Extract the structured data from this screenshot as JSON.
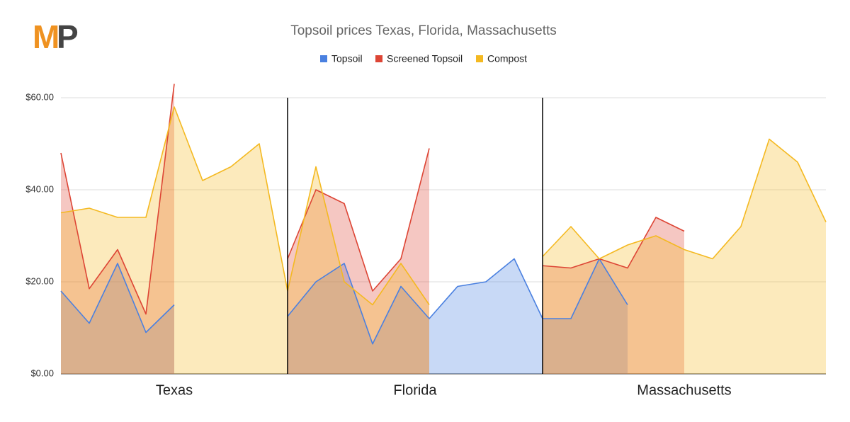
{
  "logo": {
    "first": "M",
    "second": "P"
  },
  "chart_data": {
    "type": "area",
    "title": "Topsoil prices Texas, Florida, Massachusetts",
    "categories": [
      "Texas",
      "Texas",
      "Texas",
      "Texas",
      "Texas",
      "Texas",
      "Texas",
      "Texas",
      "Florida",
      "Florida",
      "Florida",
      "Florida",
      "Florida",
      "Florida",
      "Florida",
      "Florida",
      "Florida",
      "Massachusetts",
      "Massachusetts",
      "Massachusetts",
      "Massachusetts",
      "Massachusetts",
      "Massachusetts",
      "Massachusetts",
      "Massachusetts",
      "Massachusetts",
      "Massachusetts",
      "Massachusetts"
    ],
    "series": [
      {
        "name": "Topsoil",
        "color": "#4a80e0",
        "values": [
          18,
          11,
          24,
          9,
          15,
          null,
          null,
          null,
          12.5,
          20,
          24,
          6.5,
          19,
          12,
          19,
          20,
          25,
          12,
          12,
          25,
          15,
          null,
          null,
          null,
          null,
          null,
          null,
          null
        ]
      },
      {
        "name": "Screened Topsoil",
        "color": "#dd4535",
        "values": [
          48,
          18.5,
          27,
          13,
          63,
          null,
          null,
          null,
          25,
          40,
          37,
          18,
          25,
          49,
          null,
          null,
          null,
          23.5,
          23,
          25,
          23,
          34,
          31,
          null,
          null,
          null,
          null,
          null
        ]
      },
      {
        "name": "Compost",
        "color": "#f4b921",
        "values": [
          35,
          36,
          34,
          34,
          58,
          42,
          45,
          50,
          18,
          45,
          20,
          15,
          24,
          15,
          null,
          null,
          null,
          25.5,
          32,
          25,
          28,
          30,
          27,
          25,
          32,
          51,
          46,
          33
        ]
      }
    ],
    "ylim": [
      0,
      60
    ],
    "yticks": [
      {
        "value": 0,
        "label": "$0.00"
      },
      {
        "value": 20,
        "label": "$20.00"
      },
      {
        "value": 40,
        "label": "$40.00"
      },
      {
        "value": 60,
        "label": "$60.00"
      }
    ],
    "grid": true,
    "legend": "top"
  }
}
